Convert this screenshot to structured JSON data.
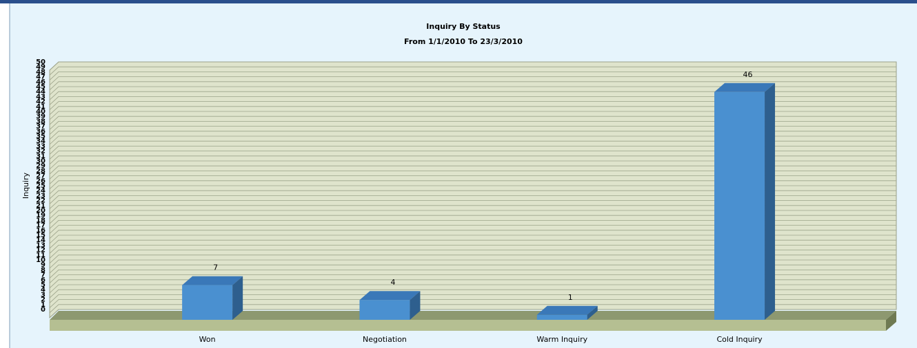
{
  "chart_data": {
    "type": "bar",
    "title": "Inquiry By Status",
    "subtitle": "From 1/1/2010  To 23/3/2010",
    "y_label": "Inquiry",
    "categories": [
      "Won",
      "Negotiation",
      "Warm Inquiry",
      "Cold Inquiry"
    ],
    "values": [
      7,
      4,
      1,
      46
    ],
    "color": "#4a90d0",
    "ylim": [
      0,
      50
    ],
    "yticks": [
      0,
      1,
      2,
      3,
      4,
      5,
      6,
      7,
      8,
      9,
      10,
      11,
      12,
      13,
      14,
      15,
      16,
      17,
      18,
      19,
      20,
      21,
      22,
      23,
      24,
      25,
      26,
      27,
      28,
      29,
      30,
      31,
      32,
      33,
      34,
      35,
      36,
      37,
      38,
      39,
      40,
      41,
      42,
      43,
      44,
      45,
      46,
      47,
      48,
      49,
      50
    ],
    "grid": true
  }
}
